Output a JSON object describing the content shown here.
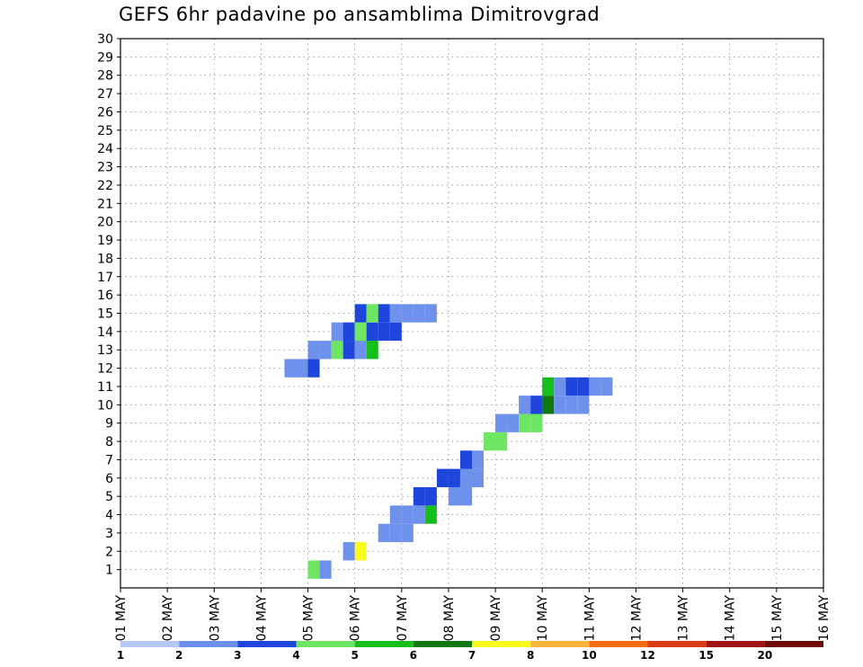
{
  "chart_data": {
    "type": "heatmap",
    "title": "GEFS 6hr padavine po ansamblima Dimitrovgrad",
    "x_tick_labels": [
      "01 MAY",
      "02 MAY",
      "03 MAY",
      "04 MAY",
      "05 MAY",
      "06 MAY",
      "07 MAY",
      "08 MAY",
      "09 MAY",
      "10 MAY",
      "11 MAY",
      "12 MAY",
      "13 MAY",
      "14 MAY",
      "15 MAY",
      "16 MAY"
    ],
    "y_tick_labels": [
      "1",
      "2",
      "3",
      "4",
      "5",
      "6",
      "7",
      "8",
      "9",
      "10",
      "11",
      "12",
      "13",
      "14",
      "15",
      "16",
      "17",
      "18",
      "19",
      "20",
      "21",
      "22",
      "23",
      "24",
      "25",
      "26",
      "27",
      "28",
      "29",
      "30"
    ],
    "ylim": [
      0,
      30
    ],
    "grid": true,
    "color_scale": {
      "colors": [
        "#b4c8f4",
        "#6e92eb",
        "#1e46dc",
        "#6ee664",
        "#16be1a",
        "#0f780f",
        "#fafa1e",
        "#fab43c",
        "#f56e14",
        "#dc3c14",
        "#a01414",
        "#6e0a0a"
      ],
      "tick_labels": [
        "1",
        "2",
        "3",
        "4",
        "5",
        "6",
        "7",
        "8",
        "10",
        "12",
        "15",
        "20"
      ]
    },
    "cells": [
      [
        1,
        0.0,
        3
      ],
      [
        1,
        1.0,
        1
      ],
      [
        2,
        1.0,
        1
      ],
      [
        2,
        2.0,
        6
      ],
      [
        3,
        2.0,
        1
      ],
      [
        3,
        3.0,
        1
      ],
      [
        3,
        4.0,
        1
      ],
      [
        4,
        1.0,
        1
      ],
      [
        4,
        2.0,
        1
      ],
      [
        4,
        3.0,
        1
      ],
      [
        4,
        4.0,
        4
      ],
      [
        5,
        1.0,
        2
      ],
      [
        5,
        2.0,
        2
      ],
      [
        5,
        4.0,
        1
      ],
      [
        5,
        5.0,
        1
      ],
      [
        6,
        1.0,
        2
      ],
      [
        6,
        2.0,
        2
      ],
      [
        6,
        3.0,
        1
      ],
      [
        6,
        4.0,
        1
      ],
      [
        7,
        1.0,
        2
      ],
      [
        7,
        2.0,
        1
      ],
      [
        8,
        1.0,
        3
      ],
      [
        8,
        2.0,
        3
      ],
      [
        9,
        0.0,
        1
      ],
      [
        9,
        1.0,
        1
      ],
      [
        9,
        2.0,
        3
      ],
      [
        9,
        3.0,
        3
      ],
      [
        10,
        0.0,
        1
      ],
      [
        10,
        1.0,
        2
      ],
      [
        10,
        2.0,
        5
      ],
      [
        10,
        3.0,
        1
      ],
      [
        10,
        4.0,
        1
      ],
      [
        10,
        5.0,
        1
      ],
      [
        11,
        0.0,
        4
      ],
      [
        11,
        1.0,
        1
      ],
      [
        11,
        2.0,
        2
      ],
      [
        11,
        3.0,
        2
      ],
      [
        11,
        4.0,
        1
      ],
      [
        11,
        5.0,
        1
      ],
      [
        12,
        0.0,
        1
      ],
      [
        12,
        1.0,
        1
      ],
      [
        12,
        2.0,
        2
      ],
      [
        13,
        0.0,
        1
      ],
      [
        13,
        1.0,
        1
      ],
      [
        13,
        2.0,
        3
      ],
      [
        13,
        3.0,
        2
      ],
      [
        13,
        4.0,
        1
      ],
      [
        13,
        5.0,
        4
      ],
      [
        14,
        0.0,
        1
      ],
      [
        14,
        1.0,
        2
      ],
      [
        14,
        2.0,
        3
      ],
      [
        14,
        3.0,
        2
      ],
      [
        14,
        4.0,
        2
      ],
      [
        14,
        5.0,
        2
      ],
      [
        15,
        0.0,
        2
      ],
      [
        15,
        1.0,
        3
      ],
      [
        15,
        2.0,
        2
      ],
      [
        15,
        3.0,
        1
      ],
      [
        15,
        4.0,
        1
      ],
      [
        15,
        5.0,
        1
      ],
      [
        15,
        6.0,
        1
      ]
    ]
  }
}
